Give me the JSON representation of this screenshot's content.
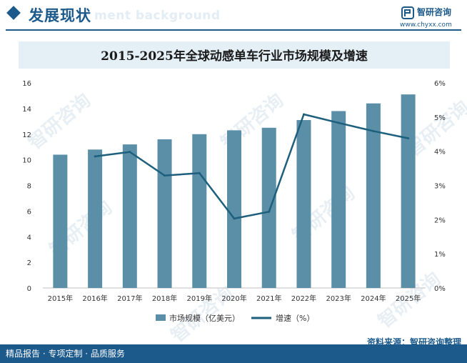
{
  "header": {
    "title": "发展现状",
    "ghost_text": "ment background"
  },
  "brand": {
    "name": "智研咨询",
    "url": "www.chyxx.com",
    "watermark_text": "智研咨询"
  },
  "footer": {
    "left_text": "精品报告 · 专项定制 · 品质服务",
    "source": "资料来源：智研咨询整理"
  },
  "colors": {
    "primary": "#1c5a8c",
    "bar": "#5b8fa8",
    "line": "#1d5f7d",
    "panel": "#e4eff6"
  },
  "chart_data": {
    "type": "bar",
    "title": "2015-2025年全球动感单车行业市场规模及增速",
    "categories": [
      "2015年",
      "2016年",
      "2017年",
      "2018年",
      "2019年",
      "2020年",
      "2021年",
      "2022年",
      "2023年",
      "2024年",
      "2025年"
    ],
    "series": [
      {
        "name": "市场规模（亿美元）",
        "type": "bar",
        "axis": "left",
        "values": [
          10.4,
          10.8,
          11.2,
          11.6,
          12.0,
          12.3,
          12.5,
          13.1,
          13.8,
          14.4,
          15.1
        ]
      },
      {
        "name": "增速（%）",
        "type": "line",
        "axis": "right",
        "values": [
          null,
          3.85,
          3.98,
          3.29,
          3.36,
          2.03,
          2.23,
          5.08,
          4.83,
          4.59,
          4.38
        ]
      }
    ],
    "ylim_left": [
      0,
      16
    ],
    "yticks_left": [
      "0",
      "2",
      "4",
      "6",
      "8",
      "10",
      "12",
      "14",
      "16"
    ],
    "ylim_right": [
      0,
      6
    ],
    "yticks_right": [
      "0%",
      "1%",
      "2%",
      "3%",
      "4%",
      "5%",
      "6%"
    ],
    "legend_position": "bottom-center",
    "grid": false
  }
}
